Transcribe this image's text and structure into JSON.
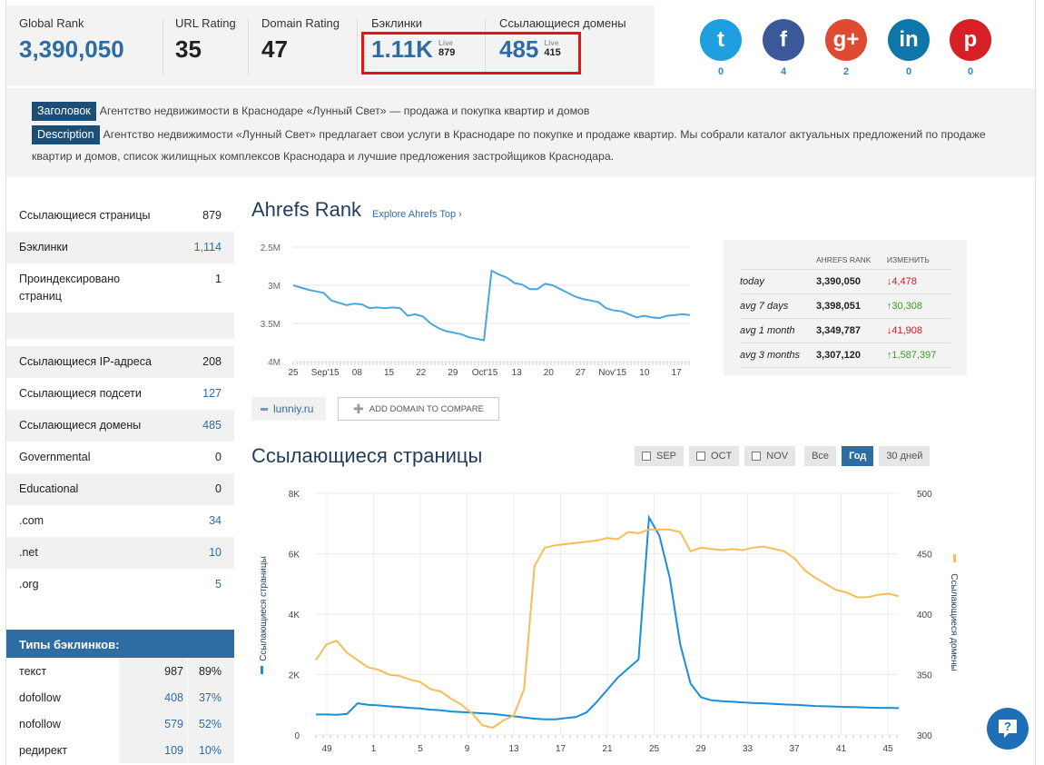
{
  "metrics": {
    "global_rank": {
      "label": "Global Rank",
      "value": "3,390,050"
    },
    "url_rating": {
      "label": "URL Rating",
      "value": "35"
    },
    "domain_rating": {
      "label": "Domain Rating",
      "value": "47"
    },
    "backlinks": {
      "label": "Бэклинки",
      "value": "1.11K",
      "live_label": "Live",
      "live_value": "879"
    },
    "ref_domains": {
      "label": "Ссылающиеся домены",
      "value": "485",
      "live_label": "Live",
      "live_value": "415"
    }
  },
  "social": [
    {
      "name": "twitter",
      "glyph": "t",
      "count": "0",
      "color": "#1f9ee0"
    },
    {
      "name": "facebook",
      "glyph": "f",
      "count": "4",
      "color": "#3b5998"
    },
    {
      "name": "google-plus",
      "glyph": "g+",
      "count": "2",
      "color": "#e04a32"
    },
    {
      "name": "linkedin",
      "glyph": "in",
      "count": "0",
      "color": "#0e76a8"
    },
    {
      "name": "pinterest",
      "glyph": "p",
      "count": "0",
      "color": "#d71f26"
    }
  ],
  "meta": {
    "title_tag": "Заголовок",
    "title_text": "Агентство недвижимости в Краснодаре «Лунный Свет» — продажа и покупка квартир и домов",
    "desc_tag": "Description",
    "desc_text": "Агентство недвижимости «Лунный Свет» предлагает свои услуги в Краснодаре по покупке и продаже квартир. Мы собрали каталог актуальных предложений по продаже квартир и домов, список жилищных комплексов Краснодара и лучшие предложения застройщиков Краснодара."
  },
  "stats": [
    {
      "label": "Ссылающиеся страницы",
      "value": "879",
      "link": false
    },
    {
      "label": "Бэклинки",
      "value": "1,114",
      "link": true
    },
    {
      "label": "Проиндексировано страниц",
      "value": "1",
      "link": false
    },
    {
      "label": "Ссылающиеся IP-адреса",
      "value": "208",
      "link": false
    },
    {
      "label": "Ссылающиеся подсети",
      "value": "127",
      "link": true
    },
    {
      "label": "Ссылающиеся домены",
      "value": "485",
      "link": true
    },
    {
      "label": "Governmental",
      "value": "0",
      "link": false
    },
    {
      "label": "Educational",
      "value": "0",
      "link": false
    },
    {
      "label": ".com",
      "value": "34",
      "link": true
    },
    {
      "label": ".net",
      "value": "10",
      "link": true
    },
    {
      "label": ".org",
      "value": "5",
      "link": true
    }
  ],
  "backlink_types": {
    "header": "Типы бэклинков:",
    "rows": [
      {
        "label": "текст",
        "count": "987",
        "pct": "89%",
        "link": false
      },
      {
        "label": "dofollow",
        "count": "408",
        "pct": "37%",
        "link": true
      },
      {
        "label": "nofollow",
        "count": "579",
        "pct": "52%",
        "link": true
      },
      {
        "label": "редирект",
        "count": "109",
        "pct": "10%",
        "link": true
      }
    ]
  },
  "ahrefs_rank": {
    "title": "Ahrefs Rank",
    "explore_link": "Explore Ahrefs Top ›",
    "table": {
      "col_rank": "AHREFS RANK",
      "col_change": "ИЗМЕНИТЬ",
      "rows": [
        {
          "period": "today",
          "rank": "3,390,050",
          "change": "4,478",
          "dir": "down"
        },
        {
          "period": "avg 7 days",
          "rank": "3,398,051",
          "change": "30,308",
          "dir": "up"
        },
        {
          "period": "avg 1 month",
          "rank": "3,349,787",
          "change": "41,908",
          "dir": "down"
        },
        {
          "period": "avg 3 months",
          "rank": "3,307,120",
          "change": "1,587,397",
          "dir": "up"
        }
      ]
    },
    "legend_domain": "lunniy.ru",
    "add_domain": "ADD DOMAIN TO COMPARE"
  },
  "ref_pages": {
    "title": "Ссылающиеся страницы",
    "filters": [
      {
        "label": "SEP",
        "checkbox": true,
        "active": false
      },
      {
        "label": "OCT",
        "checkbox": true,
        "active": false
      },
      {
        "label": "NOV",
        "checkbox": true,
        "active": false
      },
      {
        "label": "Все",
        "checkbox": false,
        "active": false
      },
      {
        "label": "Год",
        "checkbox": false,
        "active": true
      },
      {
        "label": "30 дней",
        "checkbox": false,
        "active": false
      }
    ]
  },
  "chart_data": [
    {
      "type": "line",
      "title": "Ahrefs Rank",
      "x_ticks": [
        "25",
        "Sep'15",
        "08",
        "15",
        "22",
        "29",
        "Oct'15",
        "13",
        "20",
        "27",
        "Nov'15",
        "10",
        "17"
      ],
      "y_ticks": [
        "2.5M",
        "3M",
        "3.5M",
        "4M"
      ],
      "ylim": [
        2500000,
        4000000
      ],
      "y_inverted": true,
      "grid": true,
      "series": [
        {
          "color": "#4aa6dd",
          "values": [
            3000000,
            3030000,
            3060000,
            3080000,
            3100000,
            3200000,
            3230000,
            3260000,
            3240000,
            3250000,
            3300000,
            3290000,
            3300000,
            3290000,
            3300000,
            3400000,
            3380000,
            3410000,
            3500000,
            3560000,
            3600000,
            3620000,
            3640000,
            3680000,
            3700000,
            3720000,
            2810000,
            2860000,
            2900000,
            2970000,
            2990000,
            3050000,
            3050000,
            2980000,
            3000000,
            3050000,
            3100000,
            3150000,
            3180000,
            3200000,
            3220000,
            3300000,
            3330000,
            3340000,
            3380000,
            3420000,
            3400000,
            3420000,
            3430000,
            3400000,
            3390000,
            3380000,
            3390000
          ]
        }
      ]
    },
    {
      "type": "line",
      "title": "Ссылающиеся страницы",
      "x_ticks": [
        "49",
        "1",
        "5",
        "9",
        "13",
        "17",
        "21",
        "25",
        "29",
        "33",
        "37",
        "41",
        "45"
      ],
      "y_left_ticks": [
        "0",
        "2K",
        "4K",
        "6K",
        "8K"
      ],
      "y_right_ticks": [
        "300",
        "350",
        "400",
        "450",
        "500"
      ],
      "ylim_left": [
        0,
        8000
      ],
      "ylim_right": [
        300,
        500
      ],
      "ylabel_left": "Ссылающиеся страницы",
      "ylabel_right": "Ссылающиеся домены",
      "grid": true,
      "series": [
        {
          "name": "Ссылающиеся страницы",
          "axis": "left",
          "color": "#1a8fd8",
          "values": [
            680,
            680,
            670,
            700,
            1050,
            1000,
            980,
            950,
            930,
            900,
            880,
            840,
            820,
            780,
            760,
            740,
            720,
            700,
            660,
            620,
            580,
            540,
            520,
            520,
            560,
            600,
            750,
            1100,
            1500,
            1900,
            2200,
            2500,
            7200,
            6600,
            5200,
            3000,
            1700,
            1250,
            1150,
            1120,
            1100,
            1080,
            1060,
            1050,
            1030,
            1010,
            1000,
            980,
            960,
            950,
            940,
            930,
            920,
            910,
            900,
            900,
            890
          ]
        },
        {
          "name": "Ссылающиеся домены",
          "axis": "right",
          "color": "#f7bd57",
          "values": [
            362,
            375,
            378,
            368,
            362,
            356,
            354,
            350,
            349,
            346,
            344,
            338,
            336,
            330,
            325,
            318,
            308,
            306,
            312,
            316,
            338,
            440,
            455,
            457,
            458,
            459,
            460,
            461,
            463,
            462,
            468,
            467,
            470,
            470,
            470,
            468,
            452,
            455,
            454,
            453,
            454,
            453,
            455,
            456,
            454,
            452,
            446,
            436,
            430,
            425,
            420,
            418,
            414,
            414,
            416,
            417,
            415
          ]
        }
      ]
    }
  ]
}
